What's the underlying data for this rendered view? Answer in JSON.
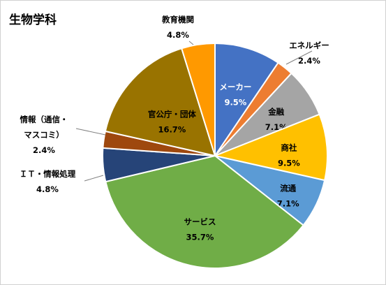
{
  "chart_data": {
    "type": "pie",
    "title": "生物学科",
    "start_angle_deg": 0,
    "direction": "clockwise",
    "slices": [
      {
        "name": "メーカー",
        "value": 9.5,
        "label": "9.5%",
        "color": "#4472C4"
      },
      {
        "name": "エネルギー",
        "value": 2.4,
        "label": "2.4%",
        "color": "#ED7D31"
      },
      {
        "name": "金融",
        "value": 7.1,
        "label": "7.1%",
        "color": "#A5A5A5"
      },
      {
        "name": "商社",
        "value": 9.5,
        "label": "9.5%",
        "color": "#FFC000"
      },
      {
        "name": "流通",
        "value": 7.1,
        "label": "7.1%",
        "color": "#5B9BD5"
      },
      {
        "name": "サービス",
        "value": 35.7,
        "label": "35.7%",
        "color": "#70AD47"
      },
      {
        "name": "ＩＴ・情報処理",
        "value": 4.8,
        "label": "4.8%",
        "color": "#264478"
      },
      {
        "name": "情報（通信・マスコミ）",
        "name_lines": [
          "情報（通信・",
          "マスコミ）"
        ],
        "value": 2.4,
        "label": "2.4%",
        "color": "#9E480E"
      },
      {
        "name": "官公庁・団体",
        "value": 16.7,
        "label": "16.7%",
        "color": "#997300"
      },
      {
        "name": "教育機関",
        "value": 4.8,
        "label": "4.8%",
        "color": "#FF9900"
      }
    ]
  }
}
